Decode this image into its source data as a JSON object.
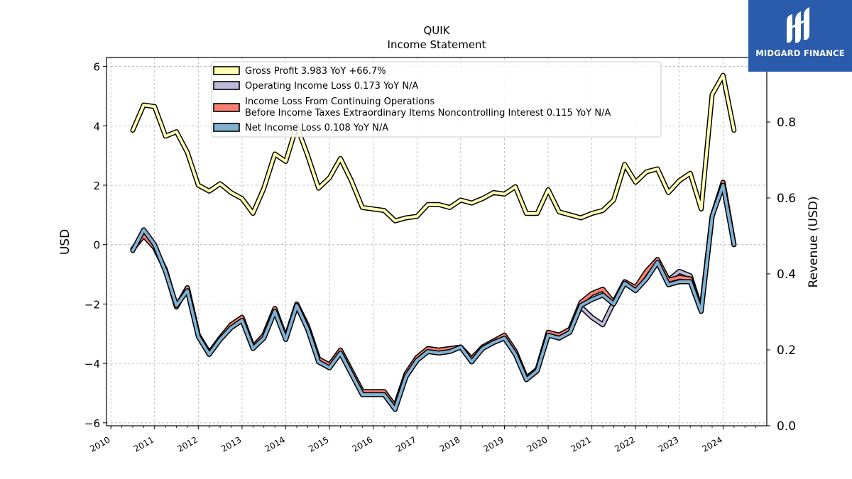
{
  "logo": {
    "text": "MIDGARD FINANCE",
    "icon": "midgard-m-logo-icon",
    "bg": "#2b5cab"
  },
  "chart_data": {
    "type": "line",
    "title": "QUIK",
    "subtitle": "Income Statement",
    "ylabel": "USD",
    "ylabel_right": "Revenue (USD)",
    "xlabel": "",
    "ylim": [
      -6.1,
      6.3
    ],
    "ylim_right": [
      0.0,
      0.97
    ],
    "xlim": [
      2009.9,
      2025.0
    ],
    "yticks": [
      "−6",
      "−4",
      "−2",
      "0",
      "2",
      "4",
      "6"
    ],
    "yticks_values": [
      -6,
      -4,
      -2,
      0,
      2,
      4,
      6
    ],
    "yticks_right": [
      "0.0",
      "0.2",
      "0.4",
      "0.6",
      "0.8"
    ],
    "yticks_right_values": [
      0.0,
      0.2,
      0.4,
      0.6,
      0.8
    ],
    "xticks": [
      "2010",
      "2011",
      "2012",
      "2013",
      "2014",
      "2015",
      "2016",
      "2017",
      "2018",
      "2019",
      "2020",
      "2021",
      "2022",
      "2023",
      "2024"
    ],
    "xticks_values": [
      2010,
      2011,
      2012,
      2013,
      2014,
      2015,
      2016,
      2017,
      2018,
      2019,
      2020,
      2021,
      2022,
      2023,
      2024
    ],
    "grid": true,
    "legend_position": "top-left",
    "x": [
      2010.5,
      2010.75,
      2011.0,
      2011.25,
      2011.5,
      2011.75,
      2012.0,
      2012.25,
      2012.5,
      2012.75,
      2013.0,
      2013.25,
      2013.5,
      2013.75,
      2014.0,
      2014.25,
      2014.5,
      2014.75,
      2015.0,
      2015.25,
      2015.5,
      2015.75,
      2016.0,
      2016.25,
      2016.5,
      2016.75,
      2017.0,
      2017.25,
      2017.5,
      2017.75,
      2018.0,
      2018.25,
      2018.5,
      2018.75,
      2019.0,
      2019.25,
      2019.5,
      2019.75,
      2020.0,
      2020.25,
      2020.5,
      2020.75,
      2021.0,
      2021.25,
      2021.5,
      2021.75,
      2022.0,
      2022.25,
      2022.5,
      2022.75,
      2023.0,
      2023.25,
      2023.5,
      2023.75,
      2024.0,
      2024.25
    ],
    "series": [
      {
        "name": "Gross Profit",
        "legend": "Gross Profit  3.983 YoY +66.7%",
        "color": "#ffffb3",
        "values": [
          3.85,
          4.7,
          4.65,
          3.65,
          3.8,
          3.1,
          2.0,
          1.8,
          2.05,
          1.75,
          1.55,
          1.05,
          1.9,
          3.05,
          2.8,
          4.0,
          3.0,
          1.9,
          2.25,
          2.9,
          2.15,
          1.25,
          1.2,
          1.15,
          0.8,
          0.9,
          0.95,
          1.35,
          1.35,
          1.25,
          1.5,
          1.4,
          1.55,
          1.75,
          1.7,
          1.95,
          1.05,
          1.05,
          1.85,
          1.1,
          1.0,
          0.9,
          1.05,
          1.15,
          1.5,
          2.7,
          2.1,
          2.45,
          2.55,
          1.75,
          2.15,
          2.4,
          1.2,
          5.05,
          5.7,
          3.85
        ]
      },
      {
        "name": "Operating Income Loss",
        "legend": "Operating Income Loss  0.173 YoY N/A",
        "color": "#bebada",
        "values": [
          -0.15,
          0.3,
          -0.1,
          -0.85,
          -2.1,
          -1.45,
          -3.05,
          -3.65,
          -3.15,
          -2.7,
          -2.45,
          -3.45,
          -3.05,
          -2.15,
          -3.15,
          -2.0,
          -2.75,
          -3.85,
          -4.05,
          -3.55,
          -4.25,
          -4.95,
          -4.95,
          -4.95,
          -5.45,
          -4.35,
          -3.8,
          -3.5,
          -3.55,
          -3.5,
          -3.45,
          -3.85,
          -3.45,
          -3.25,
          -3.05,
          -3.6,
          -4.5,
          -4.2,
          -2.95,
          -3.05,
          -2.85,
          -2.1,
          -2.45,
          -2.7,
          -1.95,
          -1.25,
          -1.45,
          -0.9,
          -0.5,
          -1.2,
          -0.9,
          -1.05,
          -2.2,
          0.95,
          2.1,
          0.0
        ]
      },
      {
        "name": "Income Loss From Continuing Operations Before Income Taxes Extraordinary Items Noncontrolling Interest",
        "legend_line1": "Income Loss From Continuing Operations",
        "legend_line2": "Before Income Taxes Extraordinary Items Noncontrolling Interest  0.115 YoY N/A",
        "color": "#fb8072",
        "values": [
          -0.15,
          0.3,
          -0.1,
          -0.85,
          -2.1,
          -1.45,
          -3.05,
          -3.65,
          -3.15,
          -2.7,
          -2.45,
          -3.45,
          -3.05,
          -2.15,
          -3.15,
          -2.0,
          -2.75,
          -3.85,
          -4.05,
          -3.55,
          -4.25,
          -4.95,
          -4.95,
          -4.95,
          -5.45,
          -4.35,
          -3.8,
          -3.5,
          -3.55,
          -3.5,
          -3.45,
          -3.85,
          -3.45,
          -3.25,
          -3.05,
          -3.6,
          -4.5,
          -4.2,
          -2.95,
          -3.05,
          -2.85,
          -1.95,
          -1.65,
          -1.5,
          -1.95,
          -1.25,
          -1.45,
          -0.9,
          -0.5,
          -1.2,
          -1.1,
          -1.15,
          -2.2,
          0.95,
          2.1,
          0.0
        ]
      },
      {
        "name": "Net Income Loss",
        "legend": "Net Income Loss  0.108 YoY N/A",
        "color": "#80b1d3",
        "values": [
          -0.2,
          0.5,
          0.0,
          -0.9,
          -2.05,
          -1.55,
          -3.1,
          -3.7,
          -3.2,
          -2.8,
          -2.55,
          -3.5,
          -3.15,
          -2.25,
          -3.2,
          -2.05,
          -2.85,
          -3.95,
          -4.15,
          -3.65,
          -4.35,
          -5.05,
          -5.05,
          -5.05,
          -5.55,
          -4.45,
          -3.9,
          -3.6,
          -3.65,
          -3.6,
          -3.45,
          -3.95,
          -3.5,
          -3.3,
          -3.15,
          -3.7,
          -4.55,
          -4.25,
          -3.05,
          -3.15,
          -2.95,
          -2.05,
          -1.85,
          -1.7,
          -2.0,
          -1.3,
          -1.55,
          -1.15,
          -0.6,
          -1.35,
          -1.25,
          -1.25,
          -2.25,
          0.95,
          2.0,
          0.0
        ]
      }
    ]
  }
}
